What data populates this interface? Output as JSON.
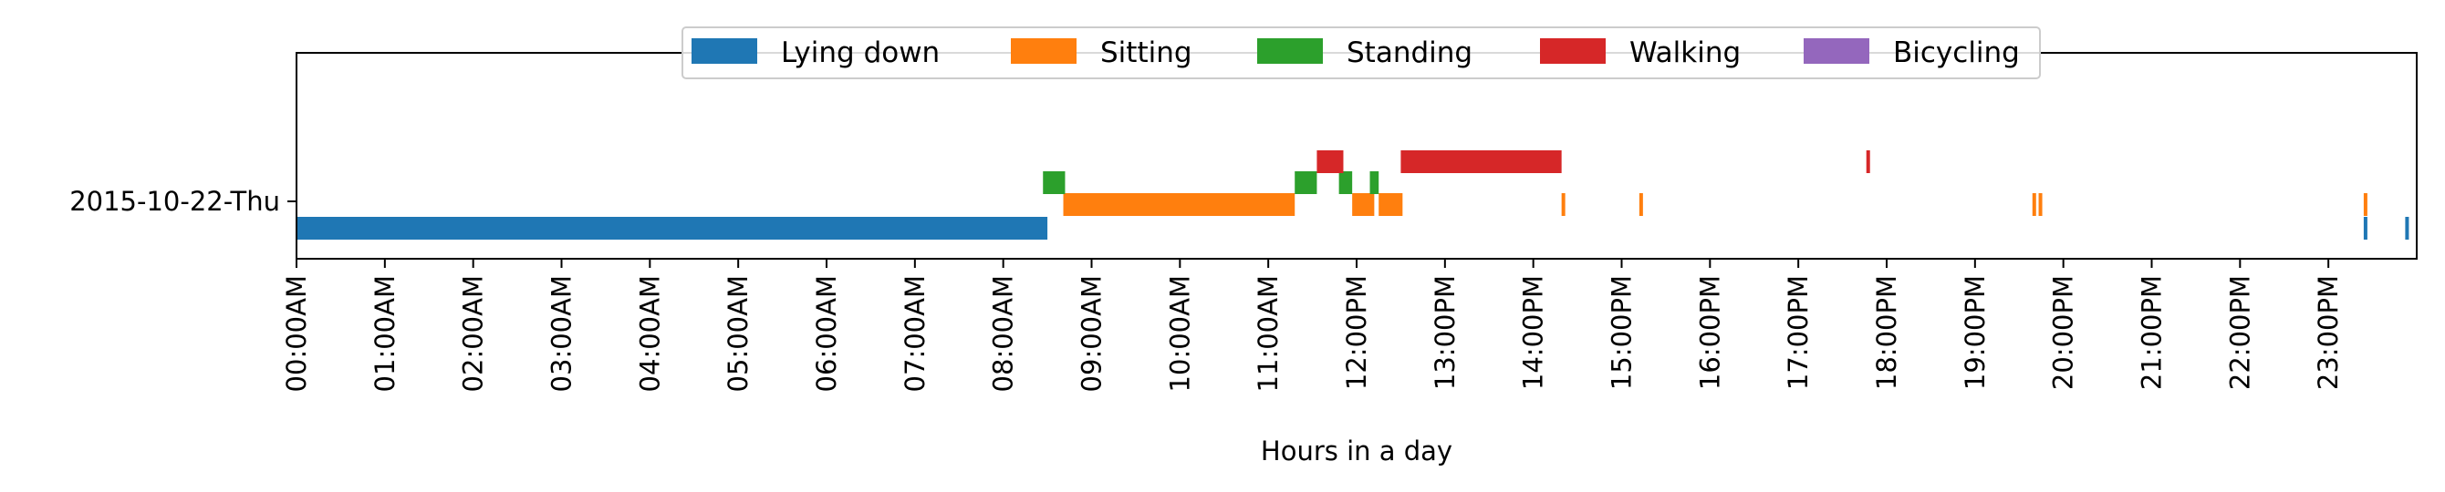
{
  "chart_data": {
    "type": "bar",
    "orientation": "horizontal-timeline",
    "title": "",
    "xlabel": "Hours in a day",
    "ylabel": "",
    "xlim": [
      0,
      24
    ],
    "x_unit": "hours",
    "x_ticks": [
      "00:00AM",
      "01:00AM",
      "02:00AM",
      "03:00AM",
      "04:00AM",
      "05:00AM",
      "06:00AM",
      "07:00AM",
      "08:00AM",
      "09:00AM",
      "10:00AM",
      "11:00AM",
      "12:00PM",
      "13:00PM",
      "14:00PM",
      "15:00PM",
      "16:00PM",
      "17:00PM",
      "18:00PM",
      "19:00PM",
      "20:00PM",
      "21:00PM",
      "22:00PM",
      "23:00PM"
    ],
    "categories": [
      "2015-10-22-Thu"
    ],
    "legend_position": "top-center",
    "grid": false,
    "series": [
      {
        "name": "Lying down",
        "color": "#1f77b4",
        "intervals": [
          [
            0.0,
            8.5
          ],
          [
            23.4,
            23.43
          ],
          [
            23.87,
            23.9
          ]
        ]
      },
      {
        "name": "Sitting",
        "color": "#ff7f0e",
        "intervals": [
          [
            8.68,
            11.3
          ],
          [
            11.95,
            12.2
          ],
          [
            12.25,
            12.52
          ],
          [
            14.32,
            14.34
          ],
          [
            15.2,
            15.22
          ],
          [
            19.65,
            19.67
          ],
          [
            19.72,
            19.74
          ],
          [
            23.4,
            23.42
          ]
        ]
      },
      {
        "name": "Standing",
        "color": "#2ca02c",
        "intervals": [
          [
            8.45,
            8.7
          ],
          [
            11.3,
            11.55
          ],
          [
            11.8,
            11.95
          ],
          [
            12.15,
            12.25
          ]
        ]
      },
      {
        "name": "Walking",
        "color": "#d62728",
        "intervals": [
          [
            11.55,
            11.85
          ],
          [
            12.5,
            14.32
          ],
          [
            17.77,
            17.79
          ]
        ]
      },
      {
        "name": "Bicycling",
        "color": "#9467bd",
        "intervals": []
      }
    ]
  }
}
